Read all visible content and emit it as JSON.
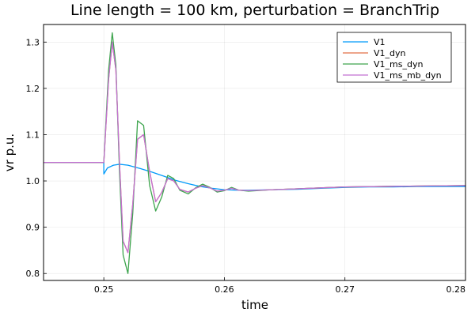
{
  "chart_data": {
    "type": "line",
    "title": "Line length = 100 km, perturbation = BranchTrip",
    "xlabel": "time",
    "ylabel": "vr p.u.",
    "xlim": [
      0.245,
      0.28
    ],
    "ylim": [
      0.785,
      1.338
    ],
    "xticks": [
      0.25,
      0.26,
      0.27,
      0.28
    ],
    "xtick_labels": [
      "0.25",
      "0.26",
      "0.27",
      "0.28"
    ],
    "yticks": [
      0.8,
      0.9,
      1.0,
      1.1,
      1.2,
      1.3
    ],
    "ytick_labels": [
      "0.8",
      "0.9",
      "1.0",
      "1.1",
      "1.2",
      "1.3"
    ],
    "grid": true,
    "legend_position": "top-right",
    "series": [
      {
        "name": "V1",
        "color": "#009AFA",
        "x": [
          0.245,
          0.25,
          0.25,
          0.2503,
          0.2508,
          0.2513,
          0.252,
          0.253,
          0.254,
          0.255,
          0.256,
          0.257,
          0.258,
          0.259,
          0.26,
          0.261,
          0.262,
          0.264,
          0.266,
          0.268,
          0.27,
          0.272,
          0.274,
          0.276,
          0.278,
          0.28
        ],
        "y": [
          1.04,
          1.04,
          1.015,
          1.028,
          1.034,
          1.036,
          1.034,
          1.027,
          1.019,
          1.01,
          1.001,
          0.994,
          0.988,
          0.984,
          0.981,
          0.98,
          0.98,
          0.981,
          0.982,
          0.984,
          0.986,
          0.987,
          0.987,
          0.988,
          0.988,
          0.988
        ]
      },
      {
        "name": "V1_dyn",
        "color": "#E26F46",
        "x": [
          0.245,
          0.25,
          0.2504,
          0.2507,
          0.251,
          0.2513,
          0.2516,
          0.252,
          0.2524,
          0.2528,
          0.2533,
          0.2538,
          0.2543,
          0.2548,
          0.2553,
          0.2558,
          0.2563,
          0.257,
          0.2576,
          0.2582,
          0.2588,
          0.2594,
          0.26,
          0.2606,
          0.2612,
          0.262,
          0.264,
          0.266,
          0.268,
          0.27,
          0.273,
          0.276,
          0.28
        ],
        "y": [
          1.04,
          1.04,
          1.22,
          1.3,
          1.24,
          1.04,
          0.87,
          0.845,
          0.95,
          1.09,
          1.1,
          1.02,
          0.955,
          0.975,
          1.005,
          1.0,
          0.982,
          0.976,
          0.984,
          0.99,
          0.985,
          0.978,
          0.98,
          0.984,
          0.98,
          0.979,
          0.981,
          0.983,
          0.985,
          0.987,
          0.988,
          0.989,
          0.99
        ]
      },
      {
        "name": "V1_ms_dyn",
        "color": "#3DA44D",
        "x": [
          0.245,
          0.25,
          0.2504,
          0.2507,
          0.251,
          0.2513,
          0.2516,
          0.252,
          0.2524,
          0.2528,
          0.2533,
          0.2538,
          0.2543,
          0.2548,
          0.2553,
          0.2558,
          0.2563,
          0.257,
          0.2576,
          0.2582,
          0.2588,
          0.2594,
          0.26,
          0.2606,
          0.2612,
          0.262,
          0.264,
          0.266,
          0.268,
          0.27,
          0.273,
          0.276,
          0.28
        ],
        "y": [
          1.04,
          1.04,
          1.24,
          1.32,
          1.25,
          1.02,
          0.84,
          0.8,
          0.93,
          1.13,
          1.12,
          0.99,
          0.935,
          0.965,
          1.012,
          1.005,
          0.98,
          0.972,
          0.985,
          0.993,
          0.986,
          0.976,
          0.979,
          0.986,
          0.98,
          0.978,
          0.981,
          0.983,
          0.985,
          0.987,
          0.988,
          0.989,
          0.99
        ]
      },
      {
        "name": "V1_ms_mb_dyn",
        "color": "#C271D2",
        "x": [
          0.245,
          0.25,
          0.2504,
          0.2507,
          0.251,
          0.2513,
          0.2516,
          0.252,
          0.2524,
          0.2528,
          0.2533,
          0.2538,
          0.2543,
          0.2548,
          0.2553,
          0.2558,
          0.2563,
          0.257,
          0.2576,
          0.2582,
          0.2588,
          0.2594,
          0.26,
          0.2606,
          0.2612,
          0.262,
          0.264,
          0.266,
          0.268,
          0.27,
          0.273,
          0.276,
          0.28
        ],
        "y": [
          1.04,
          1.04,
          1.22,
          1.3,
          1.24,
          1.04,
          0.87,
          0.845,
          0.95,
          1.09,
          1.1,
          1.02,
          0.955,
          0.975,
          1.005,
          1.0,
          0.982,
          0.976,
          0.984,
          0.99,
          0.985,
          0.978,
          0.98,
          0.984,
          0.98,
          0.979,
          0.981,
          0.983,
          0.985,
          0.987,
          0.988,
          0.989,
          0.99
        ]
      }
    ]
  }
}
